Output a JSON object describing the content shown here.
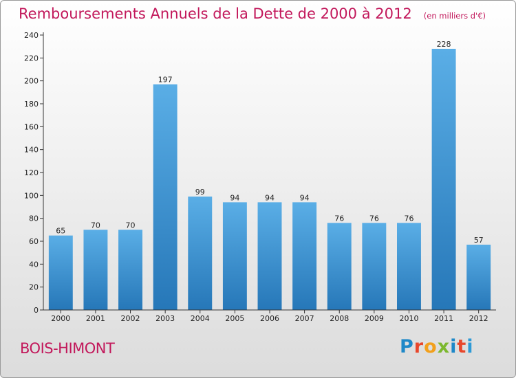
{
  "chart_data": {
    "type": "bar",
    "title": "Remboursements Annuels de la Dette de 2000 à 2012",
    "unit_note": "(en milliers d'€)",
    "categories": [
      "2000",
      "2001",
      "2002",
      "2003",
      "2004",
      "2005",
      "2006",
      "2007",
      "2008",
      "2009",
      "2010",
      "2011",
      "2012"
    ],
    "values": [
      65,
      70,
      70,
      197,
      99,
      94,
      94,
      94,
      76,
      76,
      76,
      228,
      57
    ],
    "data_labels": [
      "65",
      "70",
      "70",
      "197",
      "99",
      "94",
      "94",
      "94",
      "76",
      "76",
      "76",
      "228",
      "57"
    ],
    "yticks": [
      "0",
      "20",
      "40",
      "60",
      "80",
      "100",
      "120",
      "140",
      "160",
      "180",
      "200",
      "220",
      "240"
    ],
    "ylim": [
      0,
      240
    ],
    "grid": false,
    "bar_color": "#4a9fdc"
  },
  "footer": {
    "commune": "BOIS-HIMONT",
    "brand": "Proxiti",
    "brand_colors": [
      "#1e88c8",
      "#e8472c",
      "#f2a01c",
      "#7cb82f",
      "#1e88c8",
      "#e8472c",
      "#2e9ad6"
    ]
  },
  "colors": {
    "title": "#c2185b",
    "axis": "#333333"
  }
}
